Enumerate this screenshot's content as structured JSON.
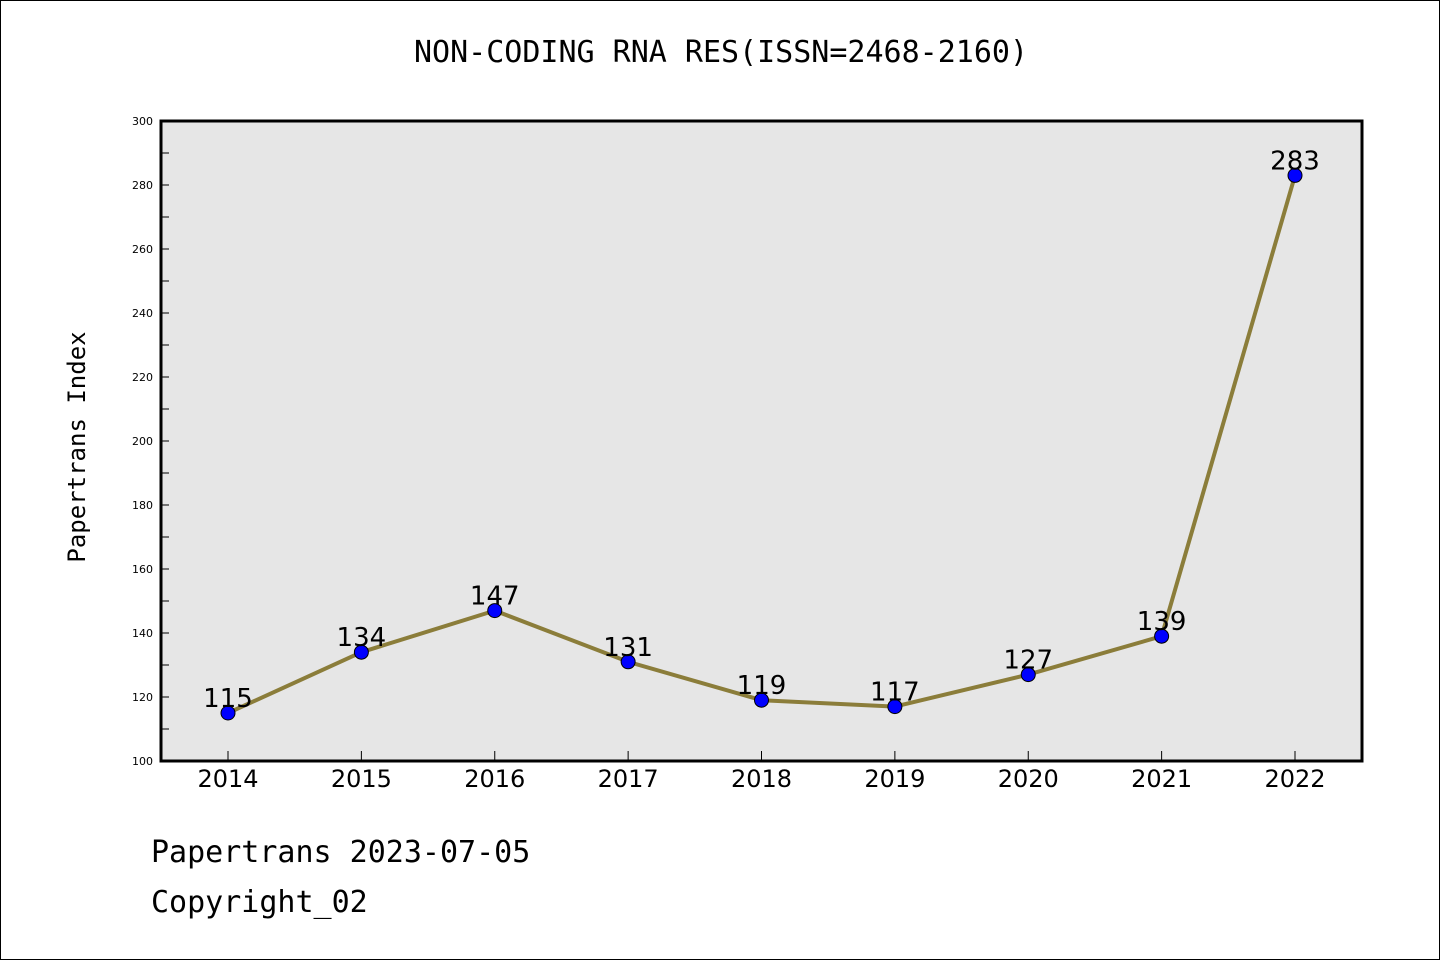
{
  "chart_data": {
    "type": "line",
    "title": "NON-CODING RNA RES(ISSN=2468-2160)",
    "ylabel": "Papertrans Index",
    "xlabel": "",
    "categories": [
      "2014",
      "2015",
      "2016",
      "2017",
      "2018",
      "2019",
      "2020",
      "2021",
      "2022"
    ],
    "series": [
      {
        "values": [
          115,
          134,
          147,
          131,
          119,
          117,
          127,
          139,
          283
        ]
      }
    ],
    "ylim": [
      100,
      300
    ],
    "yticks": [
      "100",
      "120",
      "140",
      "160",
      "180",
      "200",
      "220",
      "240",
      "260",
      "280",
      "300"
    ],
    "data_labels": [
      "115",
      "134",
      "147",
      "131",
      "119",
      "117",
      "127",
      "139",
      "283"
    ],
    "grid": false,
    "colors": {
      "line": "#8B7D3A",
      "marker": "#0000FF",
      "plot_bg": "#E6E6E6"
    }
  },
  "footer": {
    "date_line": "Papertrans 2023-07-05",
    "copyright": "Copyright_02"
  }
}
